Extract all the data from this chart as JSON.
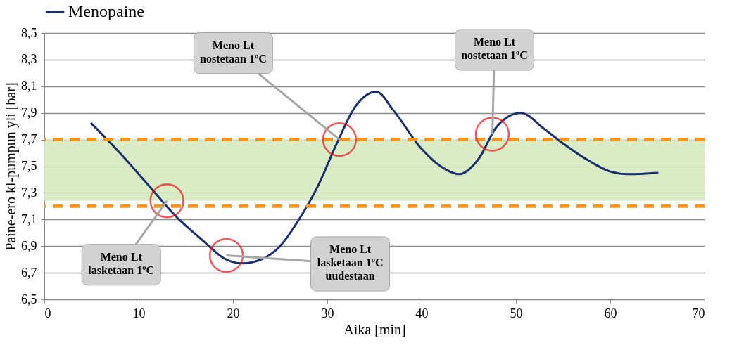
{
  "chart_data": {
    "type": "line",
    "xlabel": "Aika [min]",
    "ylabel": "Paine-ero kl-pumpun yli  [bar]",
    "x": [
      5,
      8,
      11,
      14,
      17,
      19,
      21,
      23,
      25,
      27,
      29,
      31,
      33,
      35.2,
      37,
      40,
      42,
      44,
      46,
      48,
      50.5,
      53,
      55,
      58,
      60,
      62,
      65
    ],
    "series": [
      {
        "name": "Menopaine",
        "color": "#1b2f6e",
        "values": [
          7.82,
          7.6,
          7.36,
          7.12,
          6.93,
          6.81,
          6.77,
          6.8,
          6.9,
          7.1,
          7.35,
          7.67,
          7.95,
          8.06,
          7.92,
          7.63,
          7.5,
          7.44,
          7.55,
          7.8,
          7.9,
          7.78,
          7.67,
          7.53,
          7.46,
          7.44,
          7.45
        ]
      }
    ],
    "xlim": [
      0,
      70
    ],
    "xticks": [
      0,
      10,
      20,
      30,
      40,
      50,
      60,
      70
    ],
    "ylim": [
      6.5,
      8.5
    ],
    "yticks": [
      {
        "value": 6.5,
        "label": "6,5"
      },
      {
        "value": 6.7,
        "label": "6,7"
      },
      {
        "value": 6.9,
        "label": "6,9"
      },
      {
        "value": 7.1,
        "label": "7,1"
      },
      {
        "value": 7.3,
        "label": "7,3"
      },
      {
        "value": 7.5,
        "label": "7,5"
      },
      {
        "value": 7.7,
        "label": "7,7"
      },
      {
        "value": 7.9,
        "label": "7,9"
      },
      {
        "value": 8.1,
        "label": "8,1"
      },
      {
        "value": 8.3,
        "label": "8,3"
      },
      {
        "value": 8.5,
        "label": "8,5"
      }
    ],
    "grid": "y",
    "legend": "top",
    "marker": "none",
    "line_style": "solid",
    "ref_lines": [
      {
        "axis": "y",
        "value": 7.7,
        "color": "#f7931e",
        "line_style": "dashed"
      },
      {
        "axis": "y",
        "value": 7.2,
        "color": "#f7931e",
        "line_style": "dashed"
      }
    ],
    "bands": [
      {
        "axis": "y",
        "from": 7.24,
        "to": 7.7,
        "color": "#d5eabf"
      }
    ],
    "annotations": [
      {
        "text": "Meno Lt\nnostetaan 1ºC",
        "x": 31.3,
        "y": 7.7
      },
      {
        "text": "Meno Lt\nnostetaan 1ºC",
        "x": 47.5,
        "y": 7.74
      },
      {
        "text": "Meno Lt\nlasketaan 1ºC",
        "x": 13,
        "y": 7.24
      },
      {
        "text": "Meno Lt\nlasketaan 1ºC\nuudestaan",
        "x": 19.3,
        "y": 6.83
      }
    ]
  }
}
